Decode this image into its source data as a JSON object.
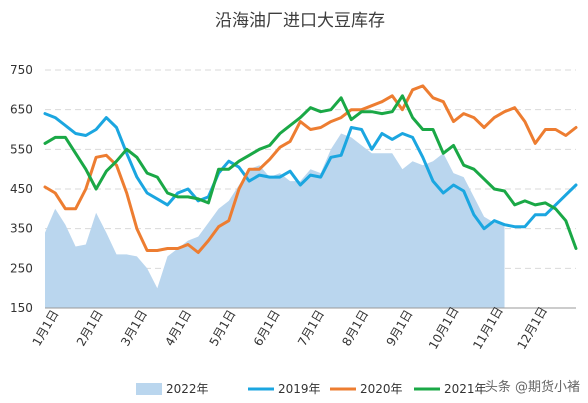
{
  "chart_data": {
    "type": "line",
    "title": "沿海油厂进口大豆库存",
    "ylim": [
      150,
      750
    ],
    "y_ticks": [
      150,
      250,
      350,
      450,
      550,
      650,
      750
    ],
    "x_tick_labels": [
      "1月1日",
      "2月1日",
      "3月1日",
      "4月1日",
      "5月1日",
      "6月1日",
      "7月1日",
      "8月1日",
      "9月1日",
      "10月1日",
      "11月1日",
      "12月1日"
    ],
    "x_range_weeks": [
      1,
      53
    ],
    "legend_position": "bottom",
    "grid": "horizontal dashed",
    "series": [
      {
        "name": "2022年",
        "kind": "area",
        "color": "#bad6ee",
        "x": [
          1,
          2,
          3,
          4,
          5,
          6,
          7,
          8,
          9,
          10,
          11,
          12,
          13,
          14,
          15,
          16,
          17,
          18,
          19,
          20,
          21,
          22,
          23,
          24,
          25,
          26,
          27,
          28,
          29,
          30,
          31,
          32,
          33,
          34,
          35,
          36,
          37,
          38,
          39,
          40,
          41,
          42,
          43,
          44,
          45,
          46
        ],
        "values": [
          340,
          400,
          360,
          305,
          310,
          390,
          340,
          285,
          285,
          280,
          250,
          200,
          280,
          300,
          320,
          330,
          365,
          400,
          420,
          460,
          500,
          510,
          480,
          490,
          470,
          470,
          500,
          490,
          550,
          590,
          580,
          560,
          540,
          540,
          540,
          500,
          520,
          510,
          520,
          540,
          490,
          480,
          430,
          380,
          365,
          360
        ]
      },
      {
        "name": "2019年",
        "color": "#1ba6e0",
        "x": [
          1,
          2,
          3,
          4,
          5,
          6,
          7,
          8,
          9,
          10,
          11,
          12,
          13,
          14,
          15,
          16,
          17,
          18,
          19,
          20,
          21,
          22,
          23,
          24,
          25,
          26,
          27,
          28,
          29,
          30,
          31,
          32,
          33,
          34,
          35,
          36,
          37,
          38,
          39,
          40,
          41,
          42,
          43,
          44,
          45,
          46,
          47,
          48,
          49,
          50,
          51,
          52,
          53
        ],
        "values": [
          640,
          630,
          610,
          590,
          585,
          600,
          630,
          605,
          540,
          480,
          440,
          425,
          410,
          440,
          450,
          420,
          430,
          490,
          520,
          505,
          470,
          485,
          480,
          480,
          495,
          460,
          485,
          480,
          530,
          535,
          605,
          600,
          550,
          590,
          575,
          590,
          580,
          530,
          470,
          440,
          460,
          445,
          385,
          350,
          370,
          360,
          355,
          355,
          385,
          385,
          410,
          435,
          460
        ]
      },
      {
        "name": "2020年",
        "color": "#ed7d31",
        "x": [
          1,
          2,
          3,
          4,
          5,
          6,
          7,
          8,
          9,
          10,
          11,
          12,
          13,
          14,
          15,
          16,
          17,
          18,
          19,
          20,
          21,
          22,
          23,
          24,
          25,
          26,
          27,
          28,
          29,
          30,
          31,
          32,
          33,
          34,
          35,
          36,
          37,
          38,
          39,
          40,
          41,
          42,
          43,
          44,
          45,
          46,
          47,
          48,
          49,
          50,
          51,
          52,
          53
        ],
        "values": [
          455,
          440,
          400,
          400,
          450,
          530,
          535,
          510,
          440,
          350,
          295,
          295,
          300,
          300,
          310,
          290,
          320,
          355,
          370,
          450,
          500,
          500,
          525,
          555,
          570,
          620,
          600,
          605,
          620,
          630,
          650,
          650,
          660,
          670,
          685,
          650,
          700,
          710,
          680,
          670,
          620,
          640,
          630,
          605,
          630,
          645,
          655,
          620,
          565,
          600,
          600,
          585,
          605
        ]
      },
      {
        "name": "2021年",
        "color": "#1aa846",
        "x": [
          1,
          2,
          3,
          4,
          5,
          6,
          7,
          8,
          9,
          10,
          11,
          12,
          13,
          14,
          15,
          16,
          17,
          18,
          19,
          20,
          21,
          22,
          23,
          24,
          25,
          26,
          27,
          28,
          29,
          30,
          31,
          32,
          33,
          34,
          35,
          36,
          37,
          38,
          39,
          40,
          41,
          42,
          43,
          44,
          45,
          46,
          47,
          48,
          49,
          50,
          51,
          52,
          53
        ],
        "values": [
          565,
          580,
          580,
          540,
          500,
          450,
          495,
          520,
          550,
          530,
          490,
          480,
          440,
          430,
          430,
          425,
          415,
          500,
          500,
          520,
          535,
          550,
          560,
          590,
          610,
          630,
          655,
          645,
          650,
          680,
          625,
          645,
          645,
          640,
          645,
          685,
          630,
          600,
          600,
          540,
          560,
          510,
          500,
          475,
          450,
          445,
          410,
          420,
          410,
          415,
          400,
          370,
          300
        ]
      }
    ]
  },
  "watermark": "头条 @期货小褚"
}
